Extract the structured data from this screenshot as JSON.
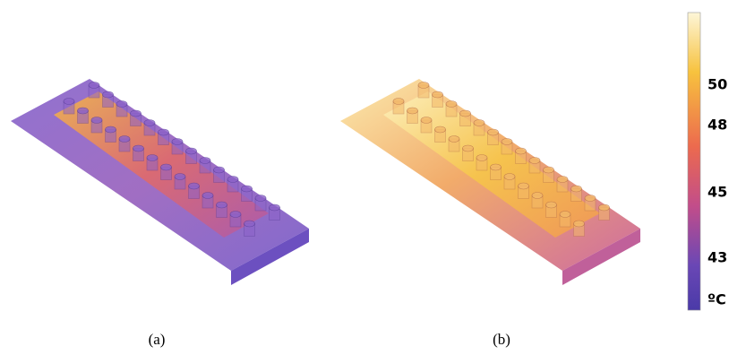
{
  "panels": [
    {
      "label": "(a)"
    },
    {
      "label": "(b)"
    }
  ],
  "colorbar": {
    "ticks": [
      50,
      48,
      45,
      43
    ],
    "unit": "ºC"
  }
}
